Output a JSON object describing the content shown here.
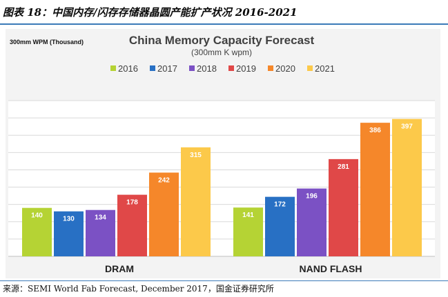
{
  "figure_caption": "图表 18：中国内存/闪存存储器晶圆产能扩产状况 2016-2021",
  "source_note": "来源：SEMI World Fab Forecast, December 2017，国金证券研究所",
  "colors": {
    "2016": "#b5d334",
    "2017": "#2870c4",
    "2018": "#7b51c4",
    "2019": "#e04848",
    "2020": "#f5872a",
    "2021": "#fcc94a",
    "grid": "#d9d9d9",
    "plot_bg": "#ffffff",
    "panel_bg": "#f3f3f3"
  },
  "chart_data": {
    "type": "bar",
    "title": "China Memory Capacity Forecast",
    "subtitle": "(300mm K wpm)",
    "ylabel": "300mm WPM (Thousand)",
    "xlabel": "",
    "categories": [
      "DRAM",
      "NAND FLASH"
    ],
    "series": [
      {
        "name": "2016",
        "values": [
          140,
          141
        ]
      },
      {
        "name": "2017",
        "values": [
          130,
          172
        ]
      },
      {
        "name": "2018",
        "values": [
          134,
          196
        ]
      },
      {
        "name": "2019",
        "values": [
          178,
          281
        ]
      },
      {
        "name": "2020",
        "values": [
          242,
          386
        ]
      },
      {
        "name": "2021",
        "values": [
          315,
          397
        ]
      }
    ],
    "ylim": [
      0,
      450
    ],
    "grid": true,
    "legend": "top-center",
    "data_labels": true
  }
}
